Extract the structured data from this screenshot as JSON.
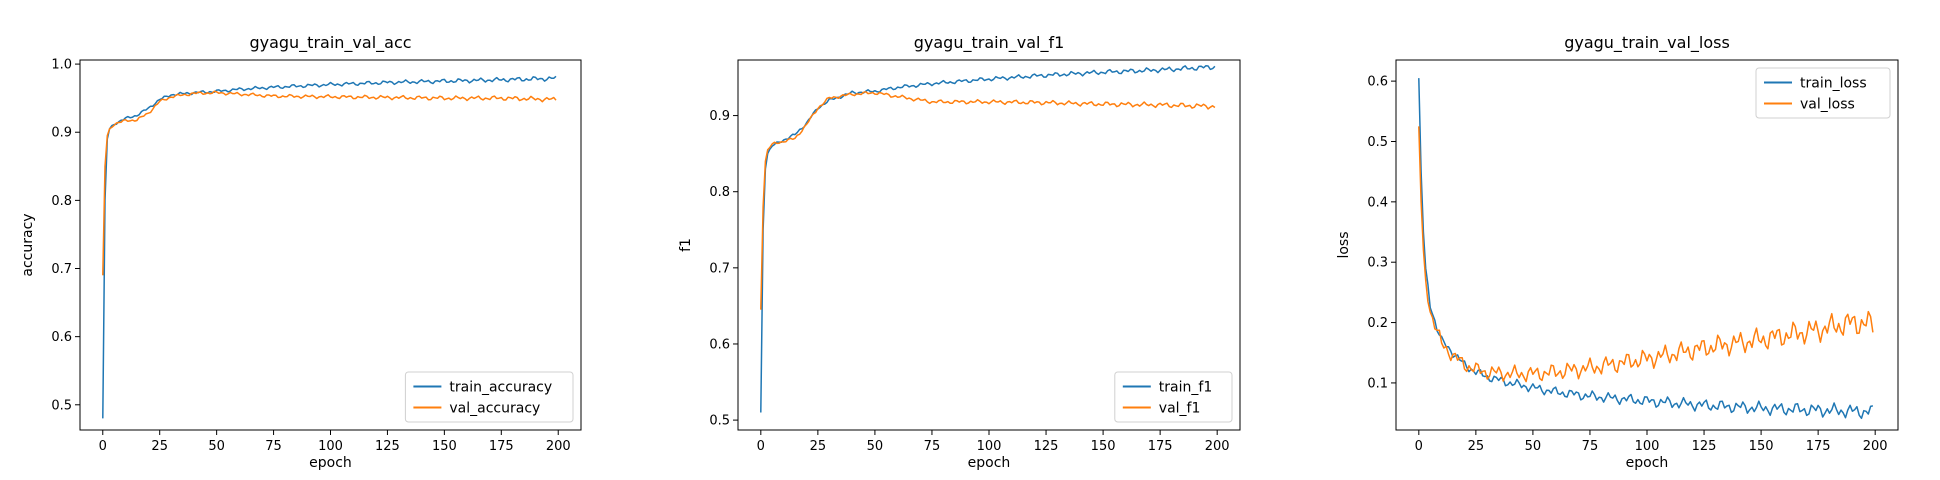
{
  "chart_data": [
    {
      "type": "line",
      "title": "gyagu_train_val_acc",
      "xlabel": "epoch",
      "ylabel": "accuracy",
      "xlim": [
        -10,
        210
      ],
      "ylim": [
        0.463,
        1.006
      ],
      "xticks": [
        0,
        25,
        50,
        75,
        100,
        125,
        150,
        175,
        200
      ],
      "yticks": [
        0.5,
        0.6,
        0.7,
        0.8,
        0.9,
        1.0
      ],
      "ytick_labels": [
        "0.5",
        "0.6",
        "0.7",
        "0.8",
        "0.9",
        "1.0"
      ],
      "legend_position": "lower-right",
      "grid": false,
      "series": [
        {
          "name": "train_accuracy",
          "color": "#1f77b4",
          "x": [
            0,
            1,
            2,
            3,
            5,
            8,
            10,
            15,
            20,
            25,
            30,
            40,
            50,
            60,
            75,
            100,
            125,
            150,
            175,
            199
          ],
          "y": [
            0.48,
            0.8,
            0.89,
            0.905,
            0.912,
            0.917,
            0.92,
            0.925,
            0.935,
            0.948,
            0.955,
            0.958,
            0.96,
            0.963,
            0.966,
            0.97,
            0.973,
            0.975,
            0.977,
            0.979
          ]
        },
        {
          "name": "val_accuracy",
          "color": "#ff7f0e",
          "x": [
            0,
            1,
            2,
            3,
            5,
            8,
            10,
            15,
            20,
            25,
            30,
            40,
            50,
            60,
            75,
            100,
            125,
            150,
            175,
            199
          ],
          "y": [
            0.69,
            0.85,
            0.895,
            0.905,
            0.912,
            0.915,
            0.917,
            0.918,
            0.928,
            0.945,
            0.952,
            0.957,
            0.958,
            0.956,
            0.953,
            0.952,
            0.951,
            0.95,
            0.95,
            0.948
          ]
        }
      ]
    },
    {
      "type": "line",
      "title": "gyagu_train_val_f1",
      "xlabel": "epoch",
      "ylabel": "f1",
      "xlim": [
        -10,
        210
      ],
      "ylim": [
        0.487,
        0.973
      ],
      "xticks": [
        0,
        25,
        50,
        75,
        100,
        125,
        150,
        175,
        200
      ],
      "yticks": [
        0.5,
        0.6,
        0.7,
        0.8,
        0.9
      ],
      "ytick_labels": [
        "0.5",
        "0.6",
        "0.7",
        "0.8",
        "0.9"
      ],
      "legend_position": "lower-right",
      "grid": false,
      "series": [
        {
          "name": "train_f1",
          "color": "#1f77b4",
          "x": [
            0,
            1,
            2,
            3,
            5,
            8,
            10,
            15,
            20,
            25,
            30,
            40,
            50,
            60,
            75,
            100,
            125,
            150,
            175,
            199
          ],
          "y": [
            0.51,
            0.75,
            0.83,
            0.85,
            0.86,
            0.865,
            0.868,
            0.875,
            0.89,
            0.91,
            0.92,
            0.93,
            0.932,
            0.937,
            0.942,
            0.948,
            0.953,
            0.957,
            0.96,
            0.964
          ]
        },
        {
          "name": "val_f1",
          "color": "#ff7f0e",
          "x": [
            0,
            1,
            2,
            3,
            5,
            8,
            10,
            15,
            20,
            25,
            30,
            40,
            50,
            60,
            75,
            100,
            125,
            150,
            175,
            199
          ],
          "y": [
            0.645,
            0.78,
            0.84,
            0.855,
            0.862,
            0.865,
            0.866,
            0.87,
            0.888,
            0.91,
            0.923,
            0.928,
            0.93,
            0.925,
            0.918,
            0.918,
            0.917,
            0.915,
            0.914,
            0.912
          ]
        }
      ]
    },
    {
      "type": "line",
      "title": "gyagu_train_val_loss",
      "xlabel": "epoch",
      "ylabel": "loss",
      "xlim": [
        -10,
        210
      ],
      "ylim": [
        0.022,
        0.635
      ],
      "xticks": [
        0,
        25,
        50,
        75,
        100,
        125,
        150,
        175,
        200
      ],
      "yticks": [
        0.1,
        0.2,
        0.3,
        0.4,
        0.5,
        0.6
      ],
      "ytick_labels": [
        "0.1",
        "0.2",
        "0.3",
        "0.4",
        "0.5",
        "0.6"
      ],
      "legend_position": "upper-right",
      "grid": false,
      "series": [
        {
          "name": "train_loss",
          "color": "#1f77b4",
          "x": [
            0,
            1,
            2,
            3,
            5,
            8,
            10,
            15,
            20,
            25,
            30,
            40,
            50,
            60,
            75,
            100,
            125,
            150,
            175,
            199
          ],
          "y": [
            0.605,
            0.45,
            0.35,
            0.29,
            0.23,
            0.19,
            0.17,
            0.15,
            0.13,
            0.118,
            0.11,
            0.1,
            0.092,
            0.085,
            0.078,
            0.07,
            0.063,
            0.058,
            0.055,
            0.052
          ]
        },
        {
          "name": "val_loss",
          "color": "#ff7f0e",
          "x": [
            0,
            1,
            2,
            3,
            5,
            8,
            10,
            15,
            20,
            25,
            30,
            40,
            50,
            60,
            75,
            100,
            125,
            150,
            175,
            190,
            199
          ],
          "y": [
            0.525,
            0.4,
            0.32,
            0.27,
            0.22,
            0.185,
            0.165,
            0.145,
            0.13,
            0.122,
            0.118,
            0.115,
            0.115,
            0.118,
            0.125,
            0.14,
            0.158,
            0.172,
            0.188,
            0.2,
            0.197
          ]
        }
      ]
    }
  ]
}
